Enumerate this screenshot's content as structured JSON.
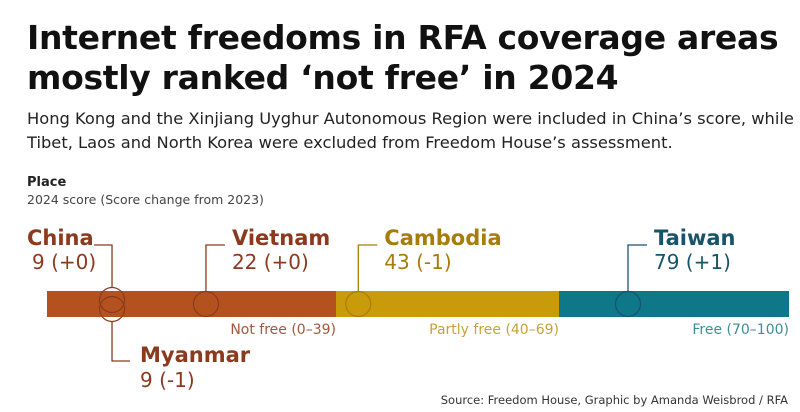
{
  "title": "Internet freedoms in RFA coverage areas mostly ranked ‘not free’ in 2024",
  "subtitle": "Hong Kong and the Xinjiang Uyghur Autonomous Region were included in China’s score, while Tibet, Laos and North Korea were excluded from Freedom House’s assessment.",
  "source": "Source: Freedom House, Graphic by Amanda Weisbrod / RFA",
  "chart_data": {
    "type": "scale",
    "title": "Place",
    "subtitle": "2024 score (Score change from 2023)",
    "xlim": [
      0,
      100
    ],
    "bands": [
      {
        "label": "Not free (0–39)",
        "from": 0,
        "to": 40,
        "color": "#b3521f",
        "text_color": "#a0583a"
      },
      {
        "label": "Partly free (40–69)",
        "from": 40,
        "to": 70,
        "color": "#c99b0b",
        "text_color": "#c9a23a"
      },
      {
        "label": "Free (70–100)",
        "from": 70,
        "to": 100,
        "color": "#0e7889",
        "text_color": "#3e8c98"
      }
    ],
    "points": [
      {
        "place": "China",
        "score": 9,
        "change": "9 (+0)",
        "color": "#8b3a1d",
        "side": "top"
      },
      {
        "place": "Myanmar",
        "score": 9,
        "change": "9 (-1)",
        "color": "#8b3a1d",
        "side": "bottom"
      },
      {
        "place": "Vietnam",
        "score": 22,
        "change": "22 (+0)",
        "color": "#8b3a1d",
        "side": "top"
      },
      {
        "place": "Cambodia",
        "score": 43,
        "change": "43 (-1)",
        "color": "#a77c0c",
        "side": "top"
      },
      {
        "place": "Taiwan",
        "score": 79,
        "change": "79 (+1)",
        "color": "#17546b",
        "side": "top"
      }
    ]
  }
}
